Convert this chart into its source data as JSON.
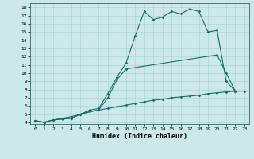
{
  "xlabel": "Humidex (Indice chaleur)",
  "bg_color": "#cce8e8",
  "line_color": "#1a6b6b",
  "xlim": [
    -0.5,
    23.5
  ],
  "ylim": [
    3.8,
    18.5
  ],
  "xticks": [
    0,
    1,
    2,
    3,
    4,
    5,
    6,
    7,
    8,
    9,
    10,
    11,
    12,
    13,
    14,
    15,
    16,
    17,
    18,
    19,
    20,
    21,
    22,
    23
  ],
  "yticks": [
    4,
    5,
    6,
    7,
    8,
    9,
    10,
    11,
    12,
    13,
    14,
    15,
    16,
    17,
    18
  ],
  "line1_x": [
    0,
    1,
    2,
    3,
    4,
    5,
    6,
    7,
    8,
    9,
    10,
    11,
    12,
    13,
    14,
    15,
    16,
    17,
    18,
    19,
    20,
    21,
    22
  ],
  "line1_y": [
    4.2,
    4.0,
    4.3,
    4.4,
    4.5,
    5.0,
    5.5,
    5.7,
    7.5,
    9.5,
    11.2,
    14.5,
    17.5,
    16.5,
    16.8,
    17.5,
    17.2,
    17.8,
    17.5,
    15.0,
    15.2,
    9.0,
    7.8
  ],
  "line2_x": [
    0,
    1,
    2,
    3,
    4,
    5,
    6,
    7,
    8,
    9,
    10,
    20,
    21,
    22
  ],
  "line2_y": [
    4.2,
    4.0,
    4.3,
    4.4,
    4.5,
    5.0,
    5.3,
    5.5,
    7.0,
    9.2,
    10.5,
    12.2,
    10.0,
    7.8
  ],
  "line3_x": [
    0,
    1,
    2,
    3,
    4,
    5,
    6,
    7,
    8,
    9,
    10,
    11,
    12,
    13,
    14,
    15,
    16,
    17,
    18,
    19,
    20,
    21,
    22,
    23
  ],
  "line3_y": [
    4.2,
    4.0,
    4.3,
    4.5,
    4.7,
    5.0,
    5.3,
    5.5,
    5.7,
    5.9,
    6.1,
    6.3,
    6.5,
    6.7,
    6.8,
    7.0,
    7.1,
    7.2,
    7.3,
    7.5,
    7.6,
    7.7,
    7.8,
    7.8
  ]
}
